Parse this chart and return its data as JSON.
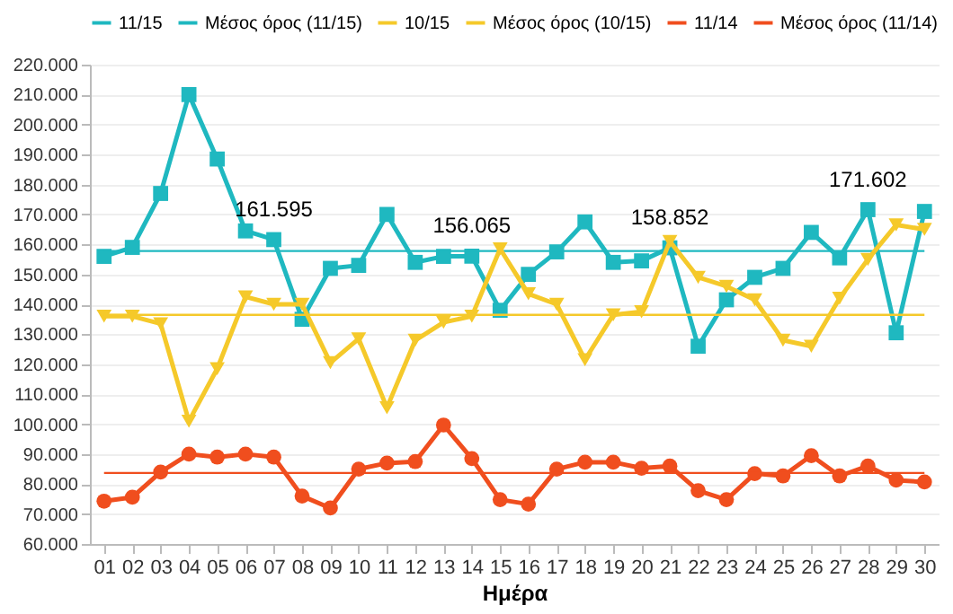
{
  "chart_data": {
    "type": "line",
    "xlabel": "Ημέρα",
    "categories": [
      "01",
      "02",
      "03",
      "04",
      "05",
      "06",
      "07",
      "08",
      "09",
      "10",
      "11",
      "12",
      "13",
      "14",
      "15",
      "16",
      "17",
      "18",
      "19",
      "20",
      "21",
      "22",
      "23",
      "24",
      "25",
      "26",
      "27",
      "28",
      "29",
      "30"
    ],
    "series": [
      {
        "name": "11/15",
        "color": "#1fb8c0",
        "marker": "square",
        "values": [
          156000,
          159000,
          177000,
          210000,
          188500,
          164500,
          161595,
          135000,
          152000,
          153000,
          170000,
          154000,
          156000,
          156065,
          138000,
          150000,
          157500,
          167500,
          154000,
          154500,
          158852,
          126000,
          141500,
          149000,
          152000,
          164000,
          155500,
          171602,
          130500,
          171000
        ]
      },
      {
        "name": "Μέσος όρος (11/15)",
        "color": "#1fb8c0",
        "marker": "none",
        "values": [
          157800,
          157800,
          157800,
          157800,
          157800,
          157800,
          157800,
          157800,
          157800,
          157800,
          157800,
          157800,
          157800,
          157800,
          157800,
          157800,
          157800,
          157800,
          157800,
          157800,
          157800,
          157800,
          157800,
          157800,
          157800,
          157800,
          157800,
          157800,
          157800,
          157800
        ]
      },
      {
        "name": "10/15",
        "color": "#f5c92a",
        "marker": "triangle",
        "values": [
          136000,
          136000,
          133500,
          101000,
          118500,
          142500,
          140000,
          140000,
          120500,
          128500,
          105500,
          128000,
          134000,
          136000,
          158500,
          143500,
          140000,
          121500,
          136500,
          137500,
          161000,
          149000,
          146000,
          141500,
          128000,
          126000,
          142000,
          155000,
          166500,
          165000
        ]
      },
      {
        "name": "Μέσος όρος (10/15)",
        "color": "#f5c92a",
        "marker": "none",
        "values": [
          136500,
          136500,
          136500,
          136500,
          136500,
          136500,
          136500,
          136500,
          136500,
          136500,
          136500,
          136500,
          136500,
          136500,
          136500,
          136500,
          136500,
          136500,
          136500,
          136500,
          136500,
          136500,
          136500,
          136500,
          136500,
          136500,
          136500,
          136500,
          136500,
          136500
        ]
      },
      {
        "name": "11/14",
        "color": "#f04e1e",
        "marker": "circle",
        "values": [
          74300,
          75600,
          84000,
          90000,
          89000,
          90000,
          89000,
          76000,
          72000,
          85000,
          87000,
          87500,
          99700,
          88500,
          74800,
          73300,
          85000,
          87300,
          87300,
          85300,
          86000,
          77800,
          74800,
          83500,
          82700,
          89500,
          82700,
          86000,
          81300,
          80700
        ]
      },
      {
        "name": "Μέσος όρος (11/14)",
        "color": "#f04e1e",
        "marker": "none",
        "values": [
          83700,
          83700,
          83700,
          83700,
          83700,
          83700,
          83700,
          83700,
          83700,
          83700,
          83700,
          83700,
          83700,
          83700,
          83700,
          83700,
          83700,
          83700,
          83700,
          83700,
          83700,
          83700,
          83700,
          83700,
          83700,
          83700,
          83700,
          83700,
          83700,
          83700
        ]
      }
    ],
    "ylim": [
      60000,
      220000
    ],
    "yticks": [
      {
        "value": 60000,
        "label": "60.000"
      },
      {
        "value": 70000,
        "label": "70.000"
      },
      {
        "value": 80000,
        "label": "80.000"
      },
      {
        "value": 90000,
        "label": "90.000"
      },
      {
        "value": 100000,
        "label": "100.000"
      },
      {
        "value": 110000,
        "label": "110.000"
      },
      {
        "value": 120000,
        "label": "120.000"
      },
      {
        "value": 130000,
        "label": "130.000"
      },
      {
        "value": 140000,
        "label": "140.000"
      },
      {
        "value": 150000,
        "label": "150.000"
      },
      {
        "value": 160000,
        "label": "160.000"
      },
      {
        "value": 170000,
        "label": "170.000"
      },
      {
        "value": 180000,
        "label": "180.000"
      },
      {
        "value": 190000,
        "label": "190.000"
      },
      {
        "value": 200000,
        "label": "200.000"
      },
      {
        "value": 210000,
        "label": "210.000"
      },
      {
        "value": 220000,
        "label": "220.000"
      }
    ],
    "annotations": [
      {
        "text": "161.595",
        "x": "07",
        "y": 161595
      },
      {
        "text": "156.065",
        "x": "14",
        "y": 156065
      },
      {
        "text": "158.852",
        "x": "21",
        "y": 158852
      },
      {
        "text": "171.602",
        "x": "28",
        "y": 171602
      }
    ],
    "grid": "y",
    "legend": "top"
  }
}
